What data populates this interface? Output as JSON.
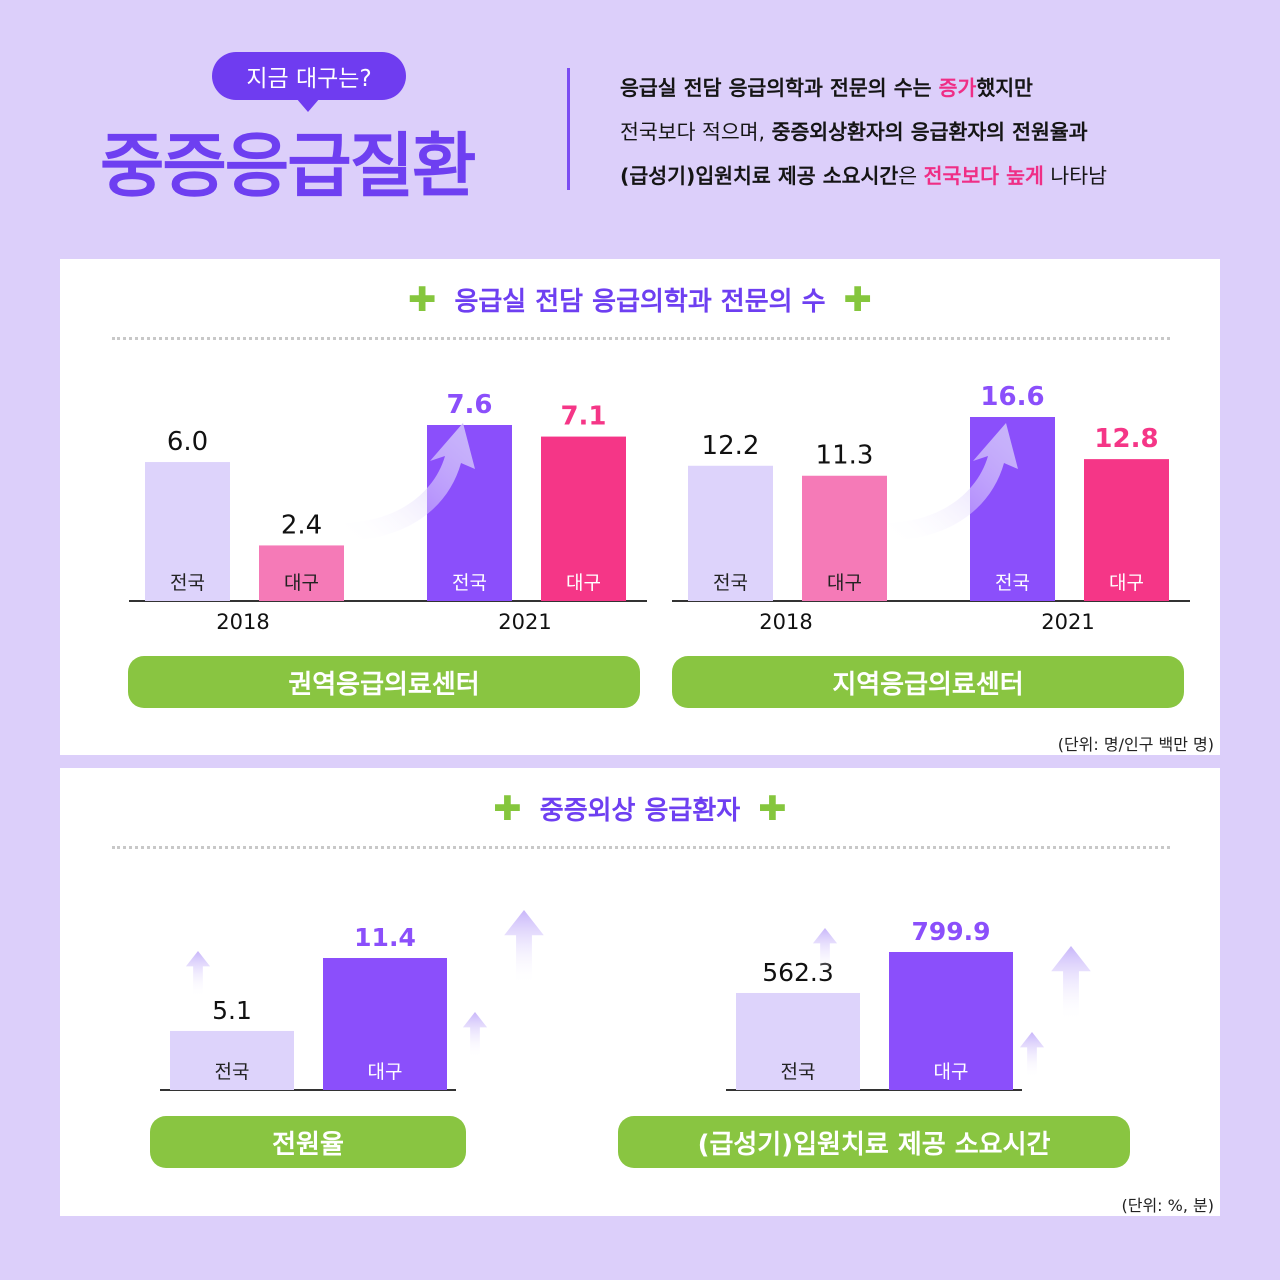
{
  "header": {
    "bubble": "지금 대구는?",
    "title": "중증응급질환",
    "desc": {
      "l1a": "응급실 전담 응급의학과 전문의 수는 ",
      "l1b": "증가",
      "l1c": "했지만",
      "l2a": "전국보다 적으며, ",
      "l2b": "중증외상환자의 응급환자의 전원율과",
      "l3a": "(급성기)입원치료 제공 소요시간",
      "l3b": "은 ",
      "l3c": "전국보다 높게",
      "l3d": " 나타남"
    }
  },
  "section1": {
    "title": "응급실 전담 응급의학과 전문의 수",
    "unit": "(단위: 명/인구 백만 명)",
    "left_pill": "권역응급의료센터",
    "right_pill": "지역응급의료센터"
  },
  "section2": {
    "title": "중증외상 응급환자",
    "unit": "(단위: %, 분)",
    "left_pill": "전원율",
    "right_pill": "(급성기)입원치료 제공 소요시간"
  },
  "colors": {
    "nation_2018": "#ddd3fb",
    "daegu_2018": "#f57ab7",
    "nation_2021": "#8b4ffb",
    "daegu_2021": "#f53687",
    "pill": "#89c541",
    "accent": "#6e3ff1",
    "highlight": "#ef2e86"
  },
  "chart_data": [
    {
      "type": "bar",
      "title": "권역응급의료센터",
      "categories": [
        "2018",
        "2021"
      ],
      "bar_labels": [
        "전국",
        "대구"
      ],
      "series": [
        {
          "name": "전국",
          "values": [
            6.0,
            7.6
          ]
        },
        {
          "name": "대구",
          "values": [
            2.4,
            7.1
          ]
        }
      ]
    },
    {
      "type": "bar",
      "title": "지역응급의료센터",
      "categories": [
        "2018",
        "2021"
      ],
      "bar_labels": [
        "전국",
        "대구"
      ],
      "series": [
        {
          "name": "전국",
          "values": [
            12.2,
            16.6
          ]
        },
        {
          "name": "대구",
          "values": [
            11.3,
            12.8
          ]
        }
      ]
    },
    {
      "type": "bar",
      "title": "전원율",
      "categories": [
        "전국",
        "대구"
      ],
      "values": [
        5.1,
        11.4
      ]
    },
    {
      "type": "bar",
      "title": "(급성기)입원치료 제공 소요시간",
      "categories": [
        "전국",
        "대구"
      ],
      "values": [
        562.3,
        799.9
      ]
    }
  ]
}
